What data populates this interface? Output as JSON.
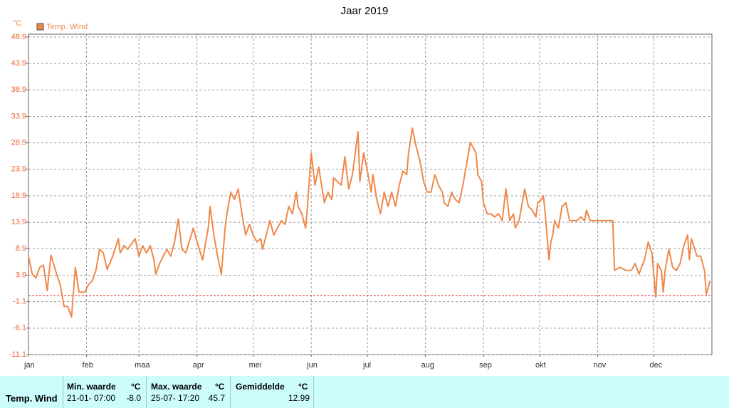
{
  "chart_data": {
    "type": "line",
    "title": "Jaar 2019",
    "y_unit": "°C",
    "xlim": [
      0,
      365
    ],
    "xticks": [
      {
        "value": 0,
        "label": "jan"
      },
      {
        "value": 31,
        "label": "feb"
      },
      {
        "value": 59,
        "label": "maa"
      },
      {
        "value": 90,
        "label": "apr"
      },
      {
        "value": 120,
        "label": "mei"
      },
      {
        "value": 151,
        "label": "jun"
      },
      {
        "value": 181,
        "label": "jul"
      },
      {
        "value": 212,
        "label": "aug"
      },
      {
        "value": 243,
        "label": "sep"
      },
      {
        "value": 273,
        "label": "okt"
      },
      {
        "value": 304,
        "label": "nov"
      },
      {
        "value": 334,
        "label": "dec"
      }
    ],
    "ylim": [
      -11.1,
      48.9
    ],
    "yticks": [
      -11.1,
      -6.1,
      -1.1,
      3.9,
      8.9,
      13.9,
      18.9,
      23.9,
      28.9,
      33.9,
      38.9,
      43.9,
      48.9
    ],
    "grid": true,
    "hline": {
      "value": 0,
      "color": "#e02020"
    },
    "series": [
      {
        "name": "Temp. Wind",
        "color": "#f0884a",
        "x": [
          0,
          2,
          4,
          6,
          8,
          10,
          12,
          15,
          17,
          19,
          21,
          23,
          25,
          27,
          30,
          32,
          34,
          36,
          38,
          40,
          42,
          45,
          48,
          49,
          51,
          53,
          57,
          59,
          61,
          63,
          65,
          67,
          68,
          70,
          72,
          74,
          76,
          78,
          80,
          82,
          84,
          87,
          88,
          90,
          93,
          96,
          97,
          99,
          101,
          103,
          105,
          106,
          108,
          110,
          112,
          114,
          116,
          118,
          120,
          122,
          124,
          125,
          127,
          129,
          131,
          133,
          135,
          137,
          139,
          141,
          143,
          144,
          146,
          148,
          149,
          151,
          153,
          155,
          158,
          160,
          162,
          163,
          167,
          169,
          171,
          173,
          176,
          177,
          179,
          181,
          183,
          184,
          186,
          188,
          190,
          192,
          194,
          196,
          198,
          200,
          202,
          203,
          205,
          207,
          209,
          211,
          213,
          215,
          217,
          219,
          221,
          222,
          224,
          226,
          228,
          230,
          232,
          234,
          236,
          239,
          240,
          242,
          243,
          245,
          247,
          249,
          251,
          253,
          255,
          257,
          259,
          260,
          262,
          264,
          265,
          267,
          269,
          271,
          272,
          274,
          275,
          276,
          278,
          279,
          280,
          281,
          283,
          285,
          287,
          289,
          293,
          295,
          297,
          298,
          300,
          304,
          310,
          312,
          313,
          316,
          319,
          322,
          324,
          326,
          329,
          331,
          333,
          335,
          336,
          338,
          339,
          340,
          342,
          344,
          346,
          348,
          350,
          352,
          353,
          354,
          357,
          359,
          361,
          362,
          364
        ],
        "values": [
          7.5,
          4.1,
          3.4,
          5.4,
          5.8,
          1.0,
          7.7,
          4.1,
          2.1,
          -2.0,
          -2.0,
          -4.0,
          5.4,
          0.7,
          0.7,
          2.1,
          2.8,
          4.8,
          8.8,
          8.1,
          5.0,
          7.5,
          10.8,
          8.1,
          9.5,
          8.8,
          10.8,
          7.5,
          9.5,
          8.1,
          9.5,
          6.8,
          4.1,
          6.1,
          7.5,
          8.8,
          7.5,
          10.2,
          14.5,
          8.8,
          8.1,
          11.5,
          12.8,
          10.2,
          6.8,
          12.8,
          16.9,
          11.5,
          7.5,
          4.1,
          12.8,
          15.5,
          19.6,
          18.2,
          20.2,
          15.5,
          11.5,
          13.5,
          11.5,
          10.2,
          10.8,
          8.8,
          11.5,
          14.2,
          11.5,
          12.8,
          14.2,
          13.5,
          16.9,
          15.5,
          19.6,
          16.9,
          15.5,
          12.8,
          16.9,
          27.0,
          20.9,
          24.3,
          17.6,
          19.6,
          18.2,
          22.3,
          20.9,
          26.3,
          20.2,
          22.9,
          31.0,
          21.6,
          27.0,
          23.6,
          19.6,
          22.9,
          18.2,
          15.5,
          19.6,
          16.9,
          19.6,
          16.9,
          20.9,
          23.6,
          22.9,
          27.0,
          31.7,
          28.3,
          25.6,
          21.6,
          19.6,
          19.6,
          22.9,
          20.9,
          19.6,
          17.6,
          16.9,
          19.6,
          18.2,
          17.6,
          20.9,
          25.0,
          29.0,
          27.0,
          22.9,
          21.6,
          17.6,
          15.5,
          15.5,
          14.9,
          15.5,
          14.2,
          20.2,
          14.2,
          15.5,
          12.8,
          14.2,
          18.2,
          20.2,
          16.9,
          16.2,
          14.9,
          17.6,
          18.2,
          18.9,
          15.5,
          6.8,
          10.2,
          11.5,
          14.2,
          12.8,
          16.9,
          17.6,
          14.2,
          14.2,
          14.9,
          14.2,
          16.2,
          14.2,
          14.2,
          14.2,
          14.2,
          4.8,
          5.4,
          4.8,
          4.8,
          6.1,
          4.1,
          6.8,
          10.2,
          8.1,
          -0.3,
          6.1,
          4.8,
          0.7,
          4.8,
          8.8,
          5.4,
          4.8,
          6.1,
          9.5,
          11.5,
          6.8,
          10.8,
          7.5,
          7.5,
          4.8,
          0.3,
          2.8
        ]
      }
    ]
  },
  "table": {
    "header": [
      "Min. waarde",
      "°C",
      "Max. waarde",
      "°C",
      "Gemiddelde",
      "°C"
    ],
    "rows": [
      [
        "Temp. Wind",
        "21-01- 07:00",
        "-8.0",
        "25-07- 17:20",
        "45.7",
        "12.99"
      ]
    ]
  }
}
